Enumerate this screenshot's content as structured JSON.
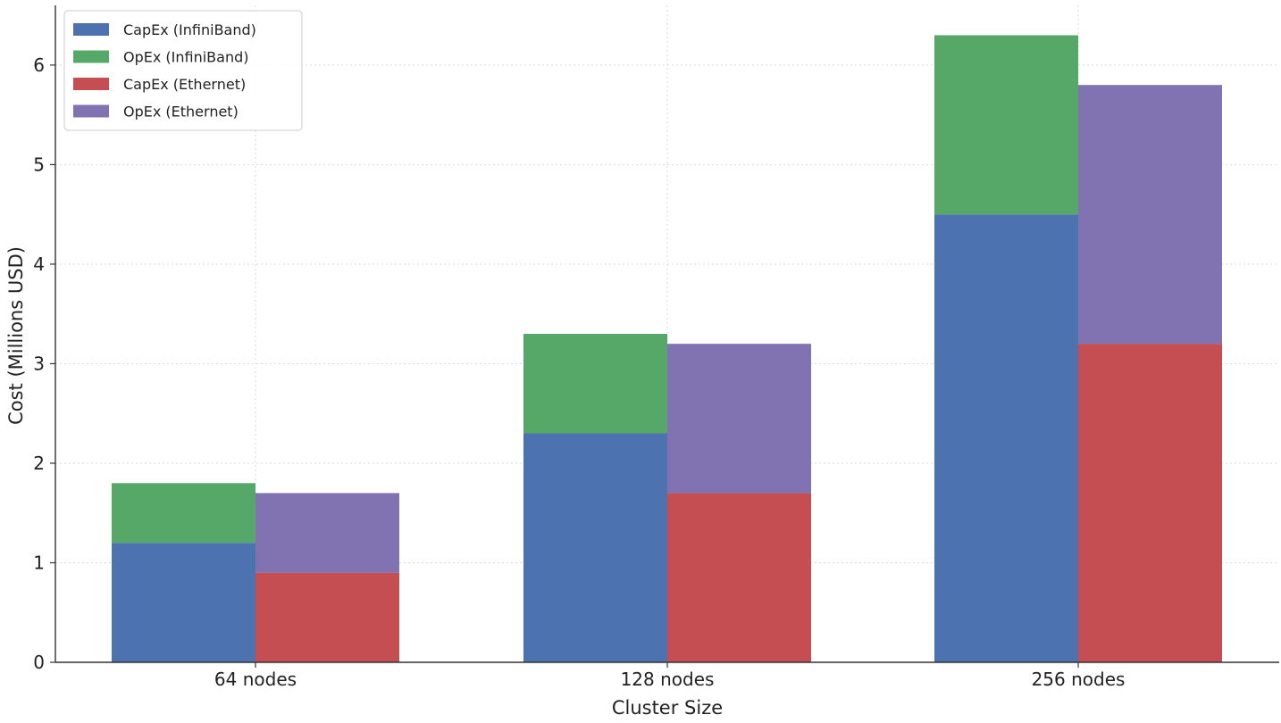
{
  "chart_data": {
    "type": "bar",
    "stacked": true,
    "title": "",
    "xlabel": "Cluster Size",
    "ylabel": "Cost (Millions USD)",
    "categories": [
      "64 nodes",
      "128 nodes",
      "256 nodes"
    ],
    "ylim": [
      0,
      6.6
    ],
    "yticks": [
      0,
      1,
      2,
      3,
      4,
      5,
      6
    ],
    "grid": true,
    "legend_position": "top-left",
    "stacks": [
      {
        "stack": "InfiniBand",
        "series": [
          {
            "name": "CapEx (InfiniBand)",
            "color": "#4c72b0",
            "values": [
              1.2,
              2.3,
              4.5
            ]
          },
          {
            "name": "OpEx (InfiniBand)",
            "color": "#55a868",
            "values": [
              0.6,
              1.0,
              1.8
            ]
          }
        ]
      },
      {
        "stack": "Ethernet",
        "series": [
          {
            "name": "CapEx (Ethernet)",
            "color": "#c44e52",
            "values": [
              0.9,
              1.7,
              3.2
            ]
          },
          {
            "name": "OpEx (Ethernet)",
            "color": "#8172b2",
            "values": [
              0.8,
              1.5,
              2.6
            ]
          }
        ]
      }
    ]
  }
}
